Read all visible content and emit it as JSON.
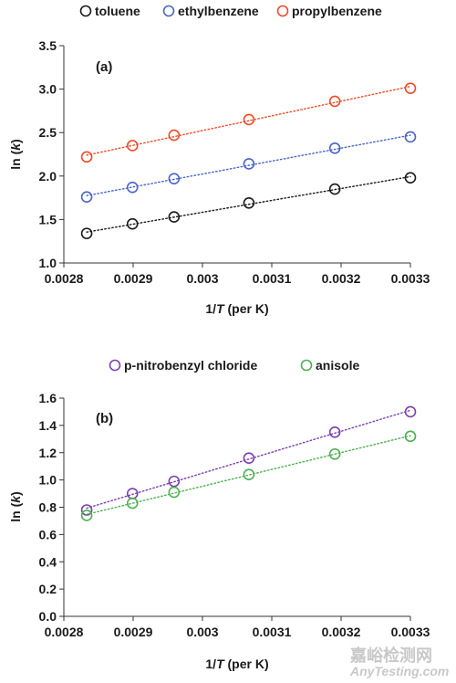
{
  "chart_data": [
    {
      "type": "scatter",
      "panel_label": "(a)",
      "xlabel_prefix": "1/",
      "xlabel_var": "T",
      "xlabel_suffix": " (per K)",
      "ylabel_prefix": "ln (",
      "ylabel_var": "k",
      "ylabel_suffix": ")",
      "xlim": [
        0.0028,
        0.0033
      ],
      "ylim": [
        1.0,
        3.5
      ],
      "xticks": [
        "0.0028",
        "0.0029",
        "0.003",
        "0.0031",
        "0.0032",
        "0.0033"
      ],
      "yticks": [
        "1.0",
        "1.5",
        "2.0",
        "2.5",
        "3.0",
        "3.5"
      ],
      "x": [
        0.002833,
        0.002899,
        0.002959,
        0.003067,
        0.003191,
        0.0033
      ],
      "grid": false,
      "legend_position": "top",
      "trendline": "linear, dotted",
      "series": [
        {
          "name": "toluene",
          "color": "#1a1a1a",
          "values": [
            1.34,
            1.45,
            1.53,
            1.69,
            1.85,
            1.98
          ]
        },
        {
          "name": "ethylbenzene",
          "color": "#4a63c8",
          "values": [
            1.76,
            1.87,
            1.97,
            2.14,
            2.32,
            2.45
          ]
        },
        {
          "name": "propylbenzene",
          "color": "#ef4a26",
          "values": [
            2.22,
            2.35,
            2.47,
            2.65,
            2.86,
            3.01
          ]
        }
      ]
    },
    {
      "type": "scatter",
      "panel_label": "(b)",
      "xlabel_prefix": "1/",
      "xlabel_var": "T",
      "xlabel_suffix": " (per K)",
      "ylabel_prefix": "ln (",
      "ylabel_var": "k",
      "ylabel_suffix": ")",
      "xlim": [
        0.0028,
        0.0033
      ],
      "ylim": [
        0.0,
        1.6
      ],
      "xticks": [
        "0.0028",
        "0.0029",
        "0.003",
        "0.0031",
        "0.0032",
        "0.0033"
      ],
      "yticks": [
        "0.0",
        "0.2",
        "0.4",
        "0.6",
        "0.8",
        "1.0",
        "1.2",
        "1.4",
        "1.6"
      ],
      "x": [
        0.002833,
        0.002899,
        0.002959,
        0.003067,
        0.003191,
        0.0033
      ],
      "grid": false,
      "legend_position": "top",
      "trendline": "linear, dotted",
      "series": [
        {
          "name": "p-nitrobenzyl chloride",
          "color": "#7b3fb0",
          "values": [
            0.78,
            0.9,
            0.99,
            1.16,
            1.35,
            1.5
          ]
        },
        {
          "name": "anisole",
          "color": "#4caf50",
          "values": [
            0.74,
            0.83,
            0.91,
            1.04,
            1.19,
            1.32
          ]
        }
      ]
    }
  ],
  "watermark": {
    "line1": "嘉峪检测网",
    "line2": "AnyTesting.com"
  }
}
